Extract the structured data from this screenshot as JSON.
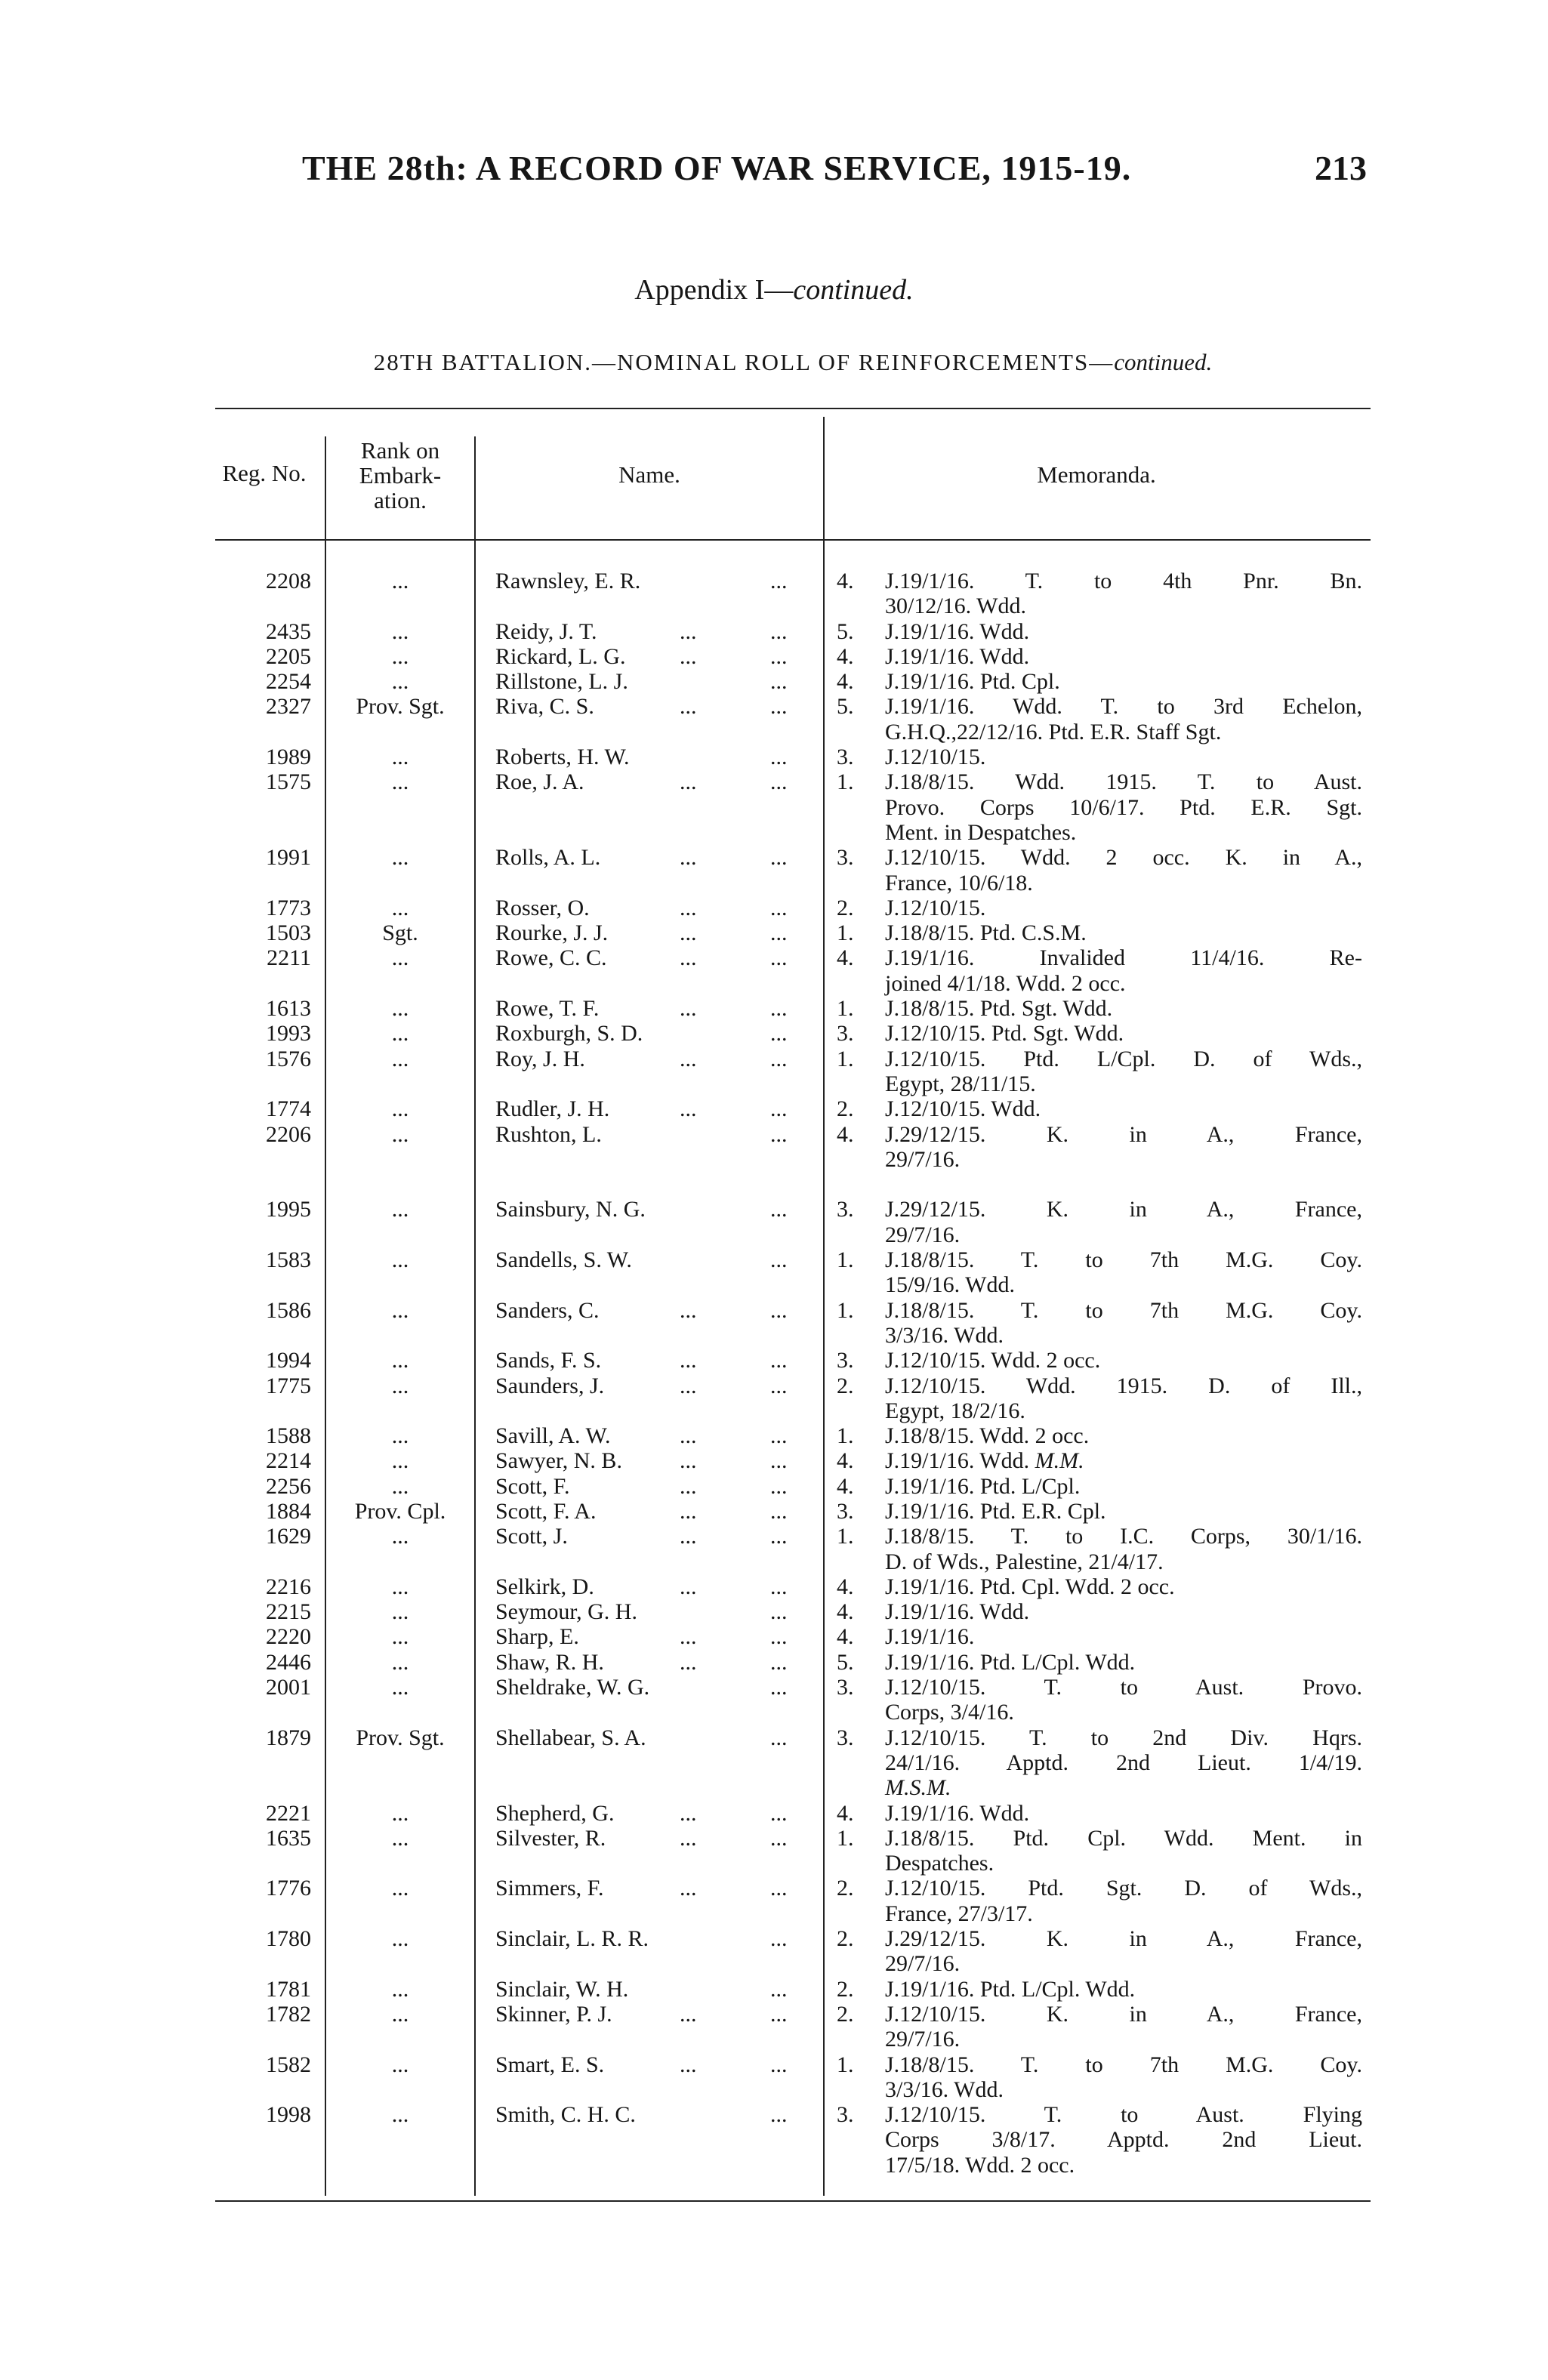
{
  "header": {
    "title": "THE 28th: A RECORD OF WAR SERVICE, 1915-19.",
    "page_number": "213",
    "appendix": "Appendix I—",
    "appendix_continued": "continued.",
    "subtitle": "28TH BATTALION.—NOMINAL ROLL OF REINFORCEMENTS—",
    "subtitle_continued": "continued."
  },
  "table": {
    "columns": {
      "reg_no": "Reg. No.",
      "rank": [
        "Rank on",
        "Embark-",
        "ation."
      ],
      "name": "Name.",
      "memoranda": "Memoranda."
    },
    "leader": "...",
    "sections": [
      {
        "rows": [
          {
            "reg": "2208",
            "rank": "...",
            "name": "Rawnsley, E. R.",
            "l2": false,
            "num": "4.",
            "lines": [
              "J.19/1/16.  T. to 4th Pnr. Bn.",
              "30/12/16.  Wdd."
            ]
          },
          {
            "reg": "2435",
            "rank": "...",
            "name": "Reidy, J. T.",
            "l2": true,
            "num": "5.",
            "lines": [
              "J.19/1/16.  Wdd."
            ]
          },
          {
            "reg": "2205",
            "rank": "...",
            "name": "Rickard, L. G.",
            "l2": true,
            "num": "4.",
            "lines": [
              "J.19/1/16.  Wdd."
            ]
          },
          {
            "reg": "2254",
            "rank": "...",
            "name": "Rillstone, L. J.",
            "l2": false,
            "num": "4.",
            "lines": [
              "J.19/1/16.  Ptd. Cpl."
            ]
          },
          {
            "reg": "2327",
            "rank": "Prov. Sgt.",
            "name": "Riva, C. S.",
            "l2": true,
            "num": "5.",
            "lines": [
              "J.19/1/16. Wdd. T. to 3rd Echelon,",
              "G.H.Q.,22/12/16. Ptd. E.R. Staff Sgt."
            ]
          },
          {
            "reg": "1989",
            "rank": "...",
            "name": "Roberts, H. W.",
            "l2": false,
            "num": "3.",
            "lines": [
              "J.12/10/15."
            ]
          },
          {
            "reg": "1575",
            "rank": "...",
            "name": "Roe, J. A.",
            "l2": true,
            "num": "1.",
            "lines": [
              "J.18/8/15. Wdd. 1915. T. to Aust.",
              "Provo. Corps 10/6/17. Ptd. E.R. Sgt.",
              "Ment. in Despatches."
            ]
          },
          {
            "reg": "1991",
            "rank": "...",
            "name": "Rolls, A. L.",
            "l2": true,
            "num": "3.",
            "lines": [
              "J.12/10/15. Wdd. 2 occ. K. in A.,",
              "France, 10/6/18."
            ]
          },
          {
            "reg": "1773",
            "rank": "...",
            "name": "Rosser, O.",
            "l2": true,
            "num": "2.",
            "lines": [
              "J.12/10/15."
            ]
          },
          {
            "reg": "1503",
            "rank": "Sgt.",
            "name": "Rourke, J. J.",
            "l2": true,
            "num": "1.",
            "lines": [
              "J.18/8/15.  Ptd. C.S.M."
            ]
          },
          {
            "reg": "2211",
            "rank": "...",
            "name": "Rowe, C. C.",
            "l2": true,
            "num": "4.",
            "lines": [
              "J.19/1/16. Invalided 11/4/16. Re-",
              "joined 4/1/18.  Wdd. 2 occ."
            ]
          },
          {
            "reg": "1613",
            "rank": "...",
            "name": "Rowe, T. F.",
            "l2": true,
            "num": "1.",
            "lines": [
              "J.18/8/15.  Ptd. Sgt.  Wdd."
            ]
          },
          {
            "reg": "1993",
            "rank": "...",
            "name": "Roxburgh, S. D.",
            "l2": false,
            "num": "3.",
            "lines": [
              "J.12/10/15.  Ptd. Sgt.  Wdd."
            ]
          },
          {
            "reg": "1576",
            "rank": "...",
            "name": "Roy, J. H.",
            "l2": true,
            "num": "1.",
            "lines": [
              "J.12/10/15. Ptd. L/Cpl. D. of Wds.,",
              "Egypt, 28/11/15."
            ]
          },
          {
            "reg": "1774",
            "rank": "...",
            "name": "Rudler, J. H.",
            "l2": true,
            "num": "2.",
            "lines": [
              "J.12/10/15.  Wdd."
            ]
          },
          {
            "reg": "2206",
            "rank": "...",
            "name": "Rushton, L.",
            "l2": false,
            "num": "4.",
            "lines": [
              "J.29/12/15.  K. in A., France,",
              "29/7/16."
            ]
          }
        ]
      },
      {
        "rows": [
          {
            "reg": "1995",
            "rank": "...",
            "name": "Sainsbury, N. G.",
            "l2": false,
            "num": "3.",
            "lines": [
              "J.29/12/15.  K. in A., France,",
              "29/7/16."
            ]
          },
          {
            "reg": "1583",
            "rank": "...",
            "name": "Sandells, S. W.",
            "l2": false,
            "num": "1.",
            "lines": [
              "J.18/8/15.  T. to 7th M.G. Coy.",
              "15/9/16.  Wdd."
            ]
          },
          {
            "reg": "1586",
            "rank": "...",
            "name": "Sanders, C.",
            "l2": true,
            "num": "1.",
            "lines": [
              "J.18/8/15.  T. to 7th M.G. Coy.",
              "3/3/16.  Wdd."
            ]
          },
          {
            "reg": "1994",
            "rank": "...",
            "name": "Sands, F. S.",
            "l2": true,
            "num": "3.",
            "lines": [
              "J.12/10/15.  Wdd. 2 occ."
            ]
          },
          {
            "reg": "1775",
            "rank": "...",
            "name": "Saunders, J.",
            "l2": true,
            "num": "2.",
            "lines": [
              "J.12/10/15. Wdd. 1915. D. of Ill.,",
              "Egypt, 18/2/16."
            ]
          },
          {
            "reg": "1588",
            "rank": "...",
            "name": "Savill, A. W.",
            "l2": true,
            "num": "1.",
            "lines": [
              "J.18/8/15.  Wdd. 2 occ."
            ]
          },
          {
            "reg": "2214",
            "rank": "...",
            "name": "Sawyer, N. B.",
            "l2": true,
            "num": "4.",
            "lines": [
              "J.19/1/16.  Wdd."
            ],
            "italic": "M.M."
          },
          {
            "reg": "2256",
            "rank": "...",
            "name": "Scott, F.",
            "l2": true,
            "num": "4.",
            "lines": [
              "J.19/1/16.  Ptd. L/Cpl."
            ]
          },
          {
            "reg": "1884",
            "rank": "Prov. Cpl.",
            "name": "Scott, F. A.",
            "l2": true,
            "num": "3.",
            "lines": [
              "J.19/1/16.  Ptd. E.R. Cpl."
            ]
          },
          {
            "reg": "1629",
            "rank": "...",
            "name": "Scott, J.",
            "l2": true,
            "num": "1.",
            "lines": [
              "J.18/8/15. T. to I.C. Corps, 30/1/16.",
              "D. of Wds., Palestine, 21/4/17."
            ]
          },
          {
            "reg": "2216",
            "rank": "...",
            "name": "Selkirk, D.",
            "l2": true,
            "num": "4.",
            "lines": [
              "J.19/1/16.  Ptd. Cpl.  Wdd. 2 occ."
            ]
          },
          {
            "reg": "2215",
            "rank": "...",
            "name": "Seymour, G. H.",
            "l2": false,
            "num": "4.",
            "lines": [
              "J.19/1/16.  Wdd."
            ]
          },
          {
            "reg": "2220",
            "rank": "...",
            "name": "Sharp, E.",
            "l2": true,
            "num": "4.",
            "lines": [
              "J.19/1/16."
            ]
          },
          {
            "reg": "2446",
            "rank": "...",
            "name": "Shaw, R. H.",
            "l2": true,
            "num": "5.",
            "lines": [
              "J.19/1/16.  Ptd. L/Cpl.  Wdd."
            ]
          },
          {
            "reg": "2001",
            "rank": "...",
            "name": "Sheldrake, W. G.",
            "l2": false,
            "num": "3.",
            "lines": [
              "J.12/10/15.  T. to Aust. Provo.",
              "Corps, 3/4/16."
            ]
          },
          {
            "reg": "1879",
            "rank": "Prov. Sgt.",
            "name": "Shellabear, S. A.",
            "l2": false,
            "num": "3.",
            "lines": [
              "J.12/10/15.  T. to 2nd Div. Hqrs.",
              "24/1/16.  Apptd. 2nd Lieut. 1/4/19."
            ],
            "italic_line": "M.S.M."
          },
          {
            "reg": "2221",
            "rank": "...",
            "name": "Shepherd, G.",
            "l2": true,
            "num": "4.",
            "lines": [
              "J.19/1/16.  Wdd."
            ]
          },
          {
            "reg": "1635",
            "rank": "...",
            "name": "Silvester, R.",
            "l2": true,
            "num": "1.",
            "lines": [
              "J.18/8/15. Ptd. Cpl. Wdd. Ment. in",
              "Despatches."
            ]
          },
          {
            "reg": "1776",
            "rank": "...",
            "name": "Simmers, F.",
            "l2": true,
            "num": "2.",
            "lines": [
              "J.12/10/15.  Ptd. Sgt.  D. of Wds.,",
              "France, 27/3/17."
            ]
          },
          {
            "reg": "1780",
            "rank": "...",
            "name": "Sinclair, L. R. R.",
            "l2": false,
            "num": "2.",
            "lines": [
              "J.29/12/15.  K. in A., France,",
              "29/7/16."
            ]
          },
          {
            "reg": "1781",
            "rank": "...",
            "name": "Sinclair, W. H.",
            "l2": false,
            "num": "2.",
            "lines": [
              "J.19/1/16.  Ptd. L/Cpl.  Wdd."
            ]
          },
          {
            "reg": "1782",
            "rank": "...",
            "name": "Skinner, P. J.",
            "l2": true,
            "num": "2.",
            "lines": [
              "J.12/10/15.  K. in A., France,",
              "29/7/16."
            ]
          },
          {
            "reg": "1582",
            "rank": "...",
            "name": "Smart, E. S.",
            "l2": true,
            "num": "1.",
            "lines": [
              "J.18/8/15.  T. to 7th M.G. Coy.",
              "3/3/16.  Wdd."
            ]
          },
          {
            "reg": "1998",
            "rank": "...",
            "name": "Smith, C. H. C.",
            "l2": false,
            "num": "3.",
            "lines": [
              "J.12/10/15.  T. to Aust. Flying",
              "Corps 3/8/17.  Apptd. 2nd Lieut.",
              "17/5/18.  Wdd. 2 occ."
            ]
          }
        ]
      }
    ]
  }
}
